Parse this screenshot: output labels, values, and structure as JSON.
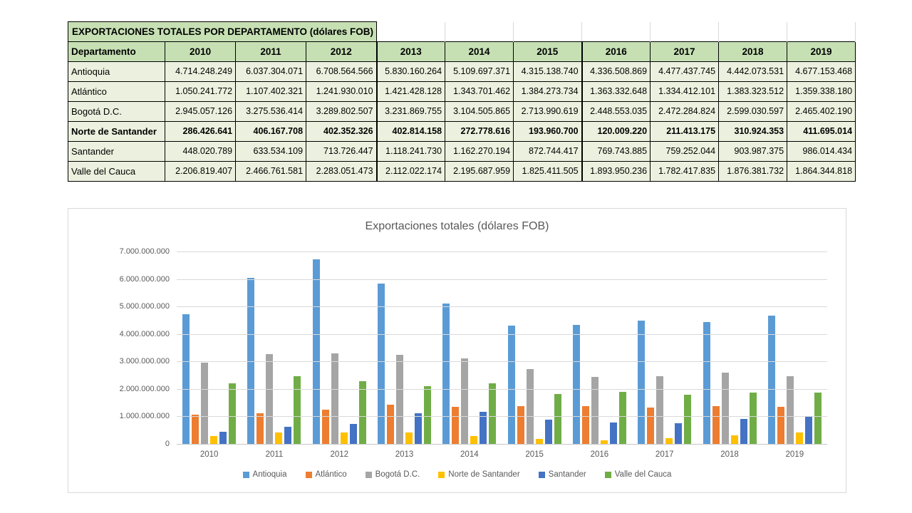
{
  "table": {
    "title": "EXPORTACIONES TOTALES POR DEPARTAMENTO (dólares FOB)",
    "corner_header": "Departamento",
    "years": [
      "2010",
      "2011",
      "2012",
      "2013",
      "2014",
      "2015",
      "2016",
      "2017",
      "2018",
      "2019"
    ],
    "rows": [
      {
        "name": "Antioquia",
        "bold": false,
        "values": [
          "4.714.248.249",
          "6.037.304.071",
          "6.708.564.566",
          "5.830.160.264",
          "5.109.697.371",
          "4.315.138.740",
          "4.336.508.869",
          "4.477.437.745",
          "4.442.073.531",
          "4.677.153.468"
        ]
      },
      {
        "name": "Atlántico",
        "bold": false,
        "values": [
          "1.050.241.772",
          "1.107.402.321",
          "1.241.930.010",
          "1.421.428.128",
          "1.343.701.462",
          "1.384.273.734",
          "1.363.332.648",
          "1.334.412.101",
          "1.383.323.512",
          "1.359.338.180"
        ]
      },
      {
        "name": "Bogotá D.C.",
        "bold": false,
        "values": [
          "2.945.057.126",
          "3.275.536.414",
          "3.289.802.507",
          "3.231.869.755",
          "3.104.505.865",
          "2.713.990.619",
          "2.448.553.035",
          "2.472.284.824",
          "2.599.030.597",
          "2.465.402.190"
        ]
      },
      {
        "name": "Norte de Santander",
        "bold": true,
        "values": [
          "286.426.641",
          "406.167.708",
          "402.352.326",
          "402.814.158",
          "272.778.616",
          "193.960.700",
          "120.009.220",
          "211.413.175",
          "310.924.353",
          "411.695.014"
        ]
      },
      {
        "name": "Santander",
        "bold": false,
        "values": [
          "448.020.789",
          "633.534.109",
          "713.726.447",
          "1.118.241.730",
          "1.162.270.194",
          "872.744.417",
          "769.743.885",
          "759.252.044",
          "903.987.375",
          "986.014.434"
        ]
      },
      {
        "name": "Valle del Cauca",
        "bold": false,
        "values": [
          "2.206.819.407",
          "2.466.761.581",
          "2.283.051.473",
          "2.112.022.174",
          "2.195.687.959",
          "1.825.411.505",
          "1.893.950.236",
          "1.782.417.835",
          "1.876.381.732",
          "1.864.344.818"
        ]
      }
    ],
    "colors": {
      "header_bg": "#C6E0B4",
      "row_bg": "#EBF1DE",
      "grid_border": "#000000"
    }
  },
  "chart_data": {
    "type": "bar",
    "title": "Exportaciones totales (dólares FOB)",
    "categories": [
      "2010",
      "2011",
      "2012",
      "2013",
      "2014",
      "2015",
      "2016",
      "2017",
      "2018",
      "2019"
    ],
    "series": [
      {
        "name": "Antioquia",
        "color": "#5B9BD5",
        "values": [
          4714248249,
          6037304071,
          6708564566,
          5830160264,
          5109697371,
          4315138740,
          4336508869,
          4477437745,
          4442073531,
          4677153468
        ]
      },
      {
        "name": "Atlántico",
        "color": "#ED7D31",
        "values": [
          1050241772,
          1107402321,
          1241930010,
          1421428128,
          1343701462,
          1384273734,
          1363332648,
          1334412101,
          1383323512,
          1359338180
        ]
      },
      {
        "name": "Bogotá D.C.",
        "color": "#A5A5A5",
        "values": [
          2945057126,
          3275536414,
          3289802507,
          3231869755,
          3104505865,
          2713990619,
          2448553035,
          2472284824,
          2599030597,
          2465402190
        ]
      },
      {
        "name": "Norte de Santander",
        "color": "#FFC000",
        "values": [
          286426641,
          406167708,
          402352326,
          402814158,
          272778616,
          193960700,
          120009220,
          211413175,
          310924353,
          411695014
        ]
      },
      {
        "name": "Santander",
        "color": "#4472C4",
        "values": [
          448020789,
          633534109,
          713726447,
          1118241730,
          1162270194,
          872744417,
          769743885,
          759252044,
          903987375,
          986014434
        ]
      },
      {
        "name": "Valle del Cauca",
        "color": "#70AD47",
        "values": [
          2206819407,
          2466761581,
          2283051473,
          2112022174,
          2195687959,
          1825411505,
          1893950236,
          1782417835,
          1876381732,
          1864344818
        ]
      }
    ],
    "ylim": [
      0,
      7000000000
    ],
    "ytick_labels": [
      "0",
      "1.000.000.000",
      "2.000.000.000",
      "3.000.000.000",
      "4.000.000.000",
      "5.000.000.000",
      "6.000.000.000",
      "7.000.000.000"
    ],
    "grid": true,
    "legend_position": "bottom",
    "text_color": "#595959",
    "gridline_color": "#D9D9D9"
  }
}
